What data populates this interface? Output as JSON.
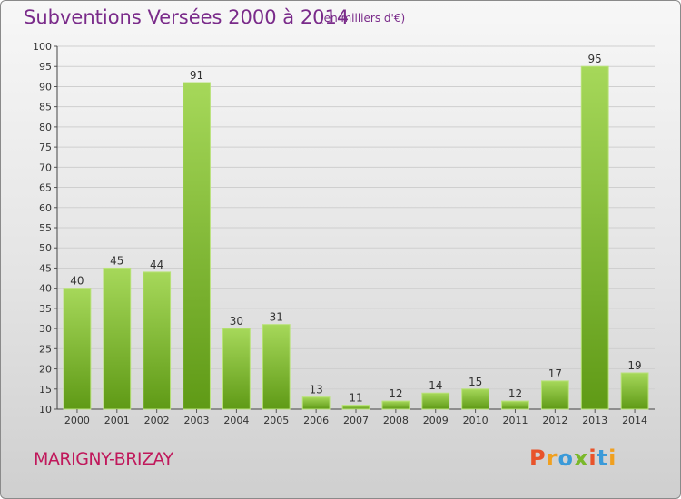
{
  "header": {
    "title": "Subventions Versées 2000 à 2014",
    "subtitle": "(en milliers d'€)"
  },
  "footer": {
    "commune": "MARIGNY-BRIZAY",
    "logo_letters": [
      "P",
      "r",
      "o",
      "x",
      "i",
      "t",
      "i"
    ],
    "logo_colors": [
      "#e8532a",
      "#f0a020",
      "#3a9ad9",
      "#7ab82a",
      "#e8532a",
      "#3a9ad9",
      "#f0a020"
    ]
  },
  "colors": {
    "bar_light": "#a6d85a",
    "bar_dark": "#5f9a16",
    "title": "#7a2b8a",
    "commune": "#c0185b"
  },
  "chart_data": {
    "type": "bar",
    "title": "Subventions Versées 2000 à 2014",
    "subtitle": "(en milliers d'€)",
    "categories": [
      "2000",
      "2001",
      "2002",
      "2003",
      "2004",
      "2005",
      "2006",
      "2007",
      "2008",
      "2009",
      "2010",
      "2011",
      "2012",
      "2013",
      "2014"
    ],
    "values": [
      40,
      45,
      44,
      91,
      30,
      31,
      13,
      11,
      12,
      14,
      15,
      12,
      17,
      95,
      19
    ],
    "ylim": [
      10,
      100
    ],
    "yticks": [
      10,
      15,
      20,
      25,
      30,
      35,
      40,
      45,
      50,
      55,
      60,
      65,
      70,
      75,
      80,
      85,
      90,
      95,
      100
    ],
    "grid": true,
    "xlabel": "",
    "ylabel": ""
  }
}
